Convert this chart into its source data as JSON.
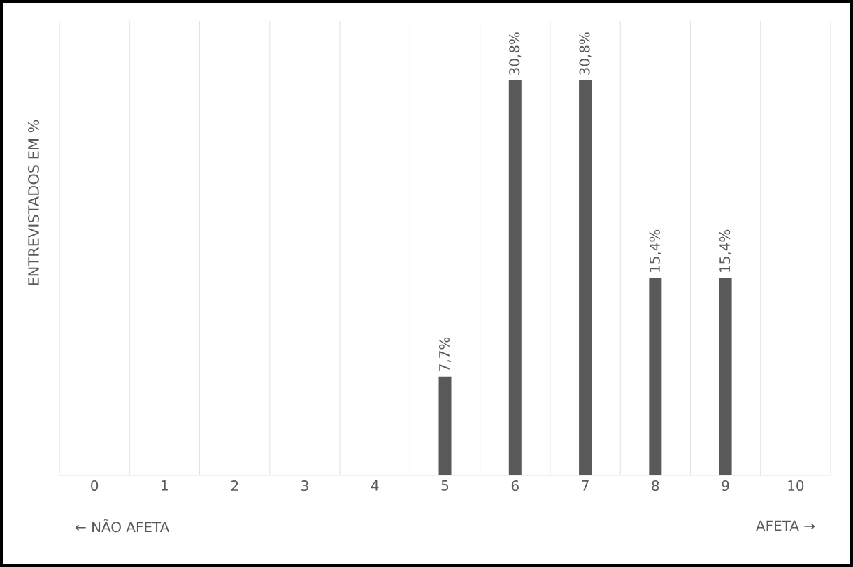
{
  "chart_data": {
    "type": "bar",
    "ylabel": "ENTREVISTADOS EM %",
    "categories": [
      "0",
      "1",
      "2",
      "3",
      "4",
      "5",
      "6",
      "7",
      "8",
      "9",
      "10"
    ],
    "values": [
      0,
      0,
      0,
      0,
      0,
      7.7,
      30.8,
      30.8,
      15.4,
      15.4,
      0
    ],
    "value_labels": [
      null,
      null,
      null,
      null,
      null,
      "7,7%",
      "30,8%",
      "30,8%",
      "15,4%",
      "15,4%",
      null
    ],
    "color": "#595959",
    "grid": "x",
    "annotations": [
      "← NÃO AFETA",
      "AFETA →"
    ]
  }
}
